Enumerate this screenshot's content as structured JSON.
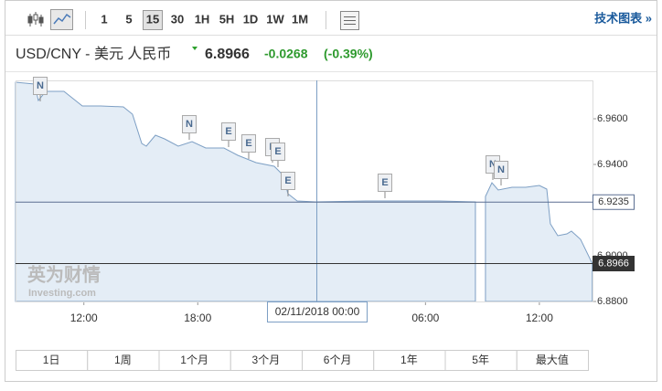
{
  "toolbar": {
    "timeframes": [
      "1",
      "5",
      "15",
      "30",
      "1H",
      "5H",
      "1D",
      "1W",
      "1M"
    ],
    "selected_timeframe": "15",
    "tech_chart": "技术图表 »"
  },
  "quote": {
    "symbol": "USD/CNY - 美元 人民币",
    "last": 6.8966,
    "change": -0.0268,
    "change_pct": "(-0.39%)"
  },
  "chart_data": {
    "type": "area",
    "color": "#7d9fc4",
    "fill": "#e4edf6",
    "x": [
      -15.6,
      -14.59,
      -14.4,
      -14.01,
      -13.05,
      -12.08,
      -11.12,
      -9.92,
      -9.44,
      -8.95,
      -8.71,
      -8.23,
      -7.75,
      -7.03,
      -6.3,
      -5.58,
      -4.62,
      -3.89,
      -2.93,
      -1.97,
      -1.49,
      -1.25,
      -0.76,
      0.2,
      2.85,
      6.7,
      8.63,
      8.92,
      9.16,
      9.5,
      9.83,
      10.56,
      11.28,
      12.0,
      12.39,
      12.58,
      12.97,
      13.45,
      13.69,
      14.17,
      14.79
    ],
    "values": [
      6.976,
      6.9752,
      6.968,
      6.972,
      6.972,
      6.9656,
      6.9656,
      6.9652,
      6.962,
      6.9492,
      6.948,
      6.9528,
      6.9512,
      6.948,
      6.95,
      6.9472,
      6.9472,
      6.944,
      6.9408,
      6.9392,
      6.9352,
      6.9272,
      6.924,
      6.9236,
      6.924,
      6.924,
      6.9236,
      null,
      6.926,
      6.932,
      6.9288,
      6.93,
      6.93,
      6.9308,
      6.9292,
      6.914,
      6.9088,
      6.9096,
      6.9108,
      6.9072,
      6.8966
    ],
    "xlim": [
      -15.6,
      14.8
    ],
    "xticks": [
      {
        "value": -12,
        "label": "12:00"
      },
      {
        "value": -6,
        "label": "18:00"
      },
      {
        "value": 6,
        "label": "06:00"
      },
      {
        "value": 12,
        "label": "12:00"
      }
    ],
    "ylim": [
      6.88,
      6.9768
    ],
    "yticks": [
      {
        "value": 6.96,
        "label": "6.9600"
      },
      {
        "value": 6.94,
        "label": "6.9400"
      },
      {
        "value": 6.9,
        "label": "6.9000"
      },
      {
        "value": 6.88,
        "label": "6.8800"
      }
    ],
    "reference_lines": [
      {
        "value": 6.9235,
        "color": "#5b6f91"
      },
      {
        "value": 6.8966,
        "color": "#333333"
      }
    ],
    "crosshair_label": "02/11/2018 00:00",
    "annotations": [
      "N",
      "N",
      "E",
      "E",
      "E",
      "E",
      "E",
      "E",
      "N",
      "N"
    ],
    "watermark": {
      "cn": "英为财情",
      "en": "Investing.com"
    }
  },
  "ranges": [
    "1日",
    "1周",
    "1个月",
    "3个月",
    "6个月",
    "1年",
    "5年",
    "最大值"
  ]
}
